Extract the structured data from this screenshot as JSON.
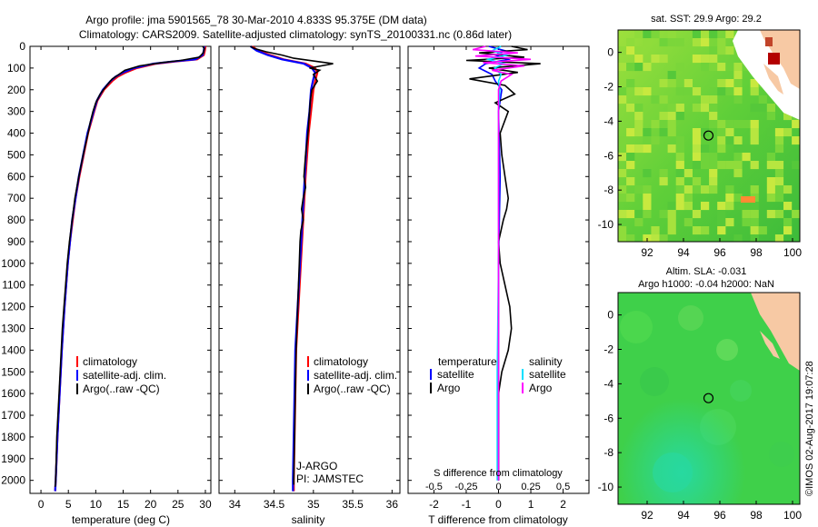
{
  "header": {
    "title_line1": "Argo profile: jma 5901565_78 30-Mar-2010 4.833S 95.375E (DM data)",
    "title_line2": "Climatology: CARS2009. Satellite-adjusted climatology: synTS_20100331.nc (0.86d later)"
  },
  "colors": {
    "climatology": "#ff0000",
    "satellite": "#0000ff",
    "argo": "#000000",
    "argo_salinity": "#ff00ff",
    "satellite_salinity": "#00e0ff",
    "land": "#f7c9a4"
  },
  "depth_ticks": [
    "0",
    "100",
    "200",
    "300",
    "400",
    "500",
    "600",
    "700",
    "800",
    "900",
    "1000",
    "1100",
    "1200",
    "1300",
    "1400",
    "1500",
    "1600",
    "1700",
    "1800",
    "1900",
    "2000"
  ],
  "chart_data": [
    {
      "type": "line",
      "id": "temperature",
      "xlabel": "temperature (deg C)",
      "xlim": [
        -2,
        31
      ],
      "ylim": [
        2060,
        0
      ],
      "xticks": [
        "0",
        "5",
        "10",
        "15",
        "20",
        "25",
        "30"
      ],
      "legend": [
        "climatology",
        "satellite-adj. clim.",
        "Argo(..raw -QC)"
      ],
      "series": [
        {
          "name": "climatology",
          "depth": [
            0,
            20,
            40,
            60,
            70,
            80,
            100,
            120,
            140,
            160,
            200,
            250,
            300,
            400,
            500,
            600,
            700,
            800,
            900,
            1000,
            1200,
            1400,
            1600,
            1800,
            2000,
            2050
          ],
          "values": [
            30.0,
            29.9,
            29.7,
            28.5,
            24.5,
            21.0,
            17.5,
            15.5,
            14.0,
            13.0,
            11.5,
            10.3,
            9.7,
            8.6,
            7.8,
            7.0,
            6.3,
            5.8,
            5.3,
            4.9,
            4.3,
            3.8,
            3.4,
            3.0,
            2.7,
            2.6
          ]
        },
        {
          "name": "satellite-adj. clim.",
          "depth": [
            0,
            20,
            40,
            60,
            70,
            80,
            100,
            120,
            140,
            160,
            200,
            250,
            300,
            400,
            500,
            600,
            700,
            800,
            900,
            1000,
            1200,
            1400,
            1600,
            1800,
            2000,
            2050
          ],
          "values": [
            29.8,
            29.7,
            29.5,
            28.2,
            24.0,
            20.5,
            17.0,
            15.0,
            13.6,
            12.7,
            11.3,
            10.2,
            9.6,
            8.5,
            7.7,
            6.9,
            6.3,
            5.7,
            5.3,
            4.9,
            4.3,
            3.8,
            3.4,
            3.0,
            2.7,
            2.6
          ]
        },
        {
          "name": "Argo(..raw -QC)",
          "depth": [
            0,
            10,
            30,
            50,
            65,
            75,
            90,
            110,
            130,
            150,
            180,
            220,
            260,
            300,
            350,
            400,
            500,
            600,
            700,
            800,
            900,
            1000,
            1100,
            1200,
            1300,
            1400,
            1600,
            1800,
            2000,
            2030
          ],
          "values": [
            29.5,
            29.8,
            29.6,
            28.9,
            25.5,
            22.0,
            18.0,
            15.3,
            14.2,
            13.0,
            12.0,
            10.8,
            10.0,
            9.5,
            9.0,
            8.6,
            7.7,
            6.9,
            6.2,
            5.7,
            5.2,
            4.8,
            4.5,
            4.2,
            3.9,
            3.7,
            3.3,
            2.9,
            2.7,
            2.6
          ]
        }
      ]
    },
    {
      "type": "line",
      "id": "salinity",
      "xlabel": "salinity",
      "xlim": [
        33.8,
        36.1
      ],
      "ylim": [
        2060,
        0
      ],
      "xticks": [
        "34",
        "34.5",
        "35",
        "35.5",
        "36"
      ],
      "legend": [
        "climatology",
        "satellite-adj. clim.",
        "Argo(..raw -QC)"
      ],
      "annotation": [
        "J-ARGO",
        "PI: JAMSTEC"
      ],
      "series": [
        {
          "name": "climatology",
          "depth": [
            0,
            20,
            40,
            60,
            80,
            100,
            120,
            150,
            200,
            300,
            400,
            600,
            800,
            1000,
            1400,
            2000,
            2050
          ],
          "values": [
            34.22,
            34.3,
            34.45,
            34.62,
            34.9,
            35.02,
            35.05,
            35.03,
            35.0,
            34.97,
            34.94,
            34.9,
            34.87,
            34.84,
            34.78,
            34.75,
            34.75
          ]
        },
        {
          "name": "satellite-adj. clim.",
          "depth": [
            0,
            20,
            40,
            60,
            80,
            100,
            120,
            150,
            200,
            300,
            400,
            600,
            800,
            1000,
            1400,
            2000,
            2050
          ],
          "values": [
            34.2,
            34.28,
            34.42,
            34.6,
            34.88,
            34.98,
            35.02,
            35.0,
            34.97,
            34.95,
            34.92,
            34.89,
            34.86,
            34.83,
            34.77,
            34.74,
            34.74
          ]
        },
        {
          "name": "Argo(..raw -QC)",
          "depth": [
            0,
            10,
            25,
            40,
            55,
            70,
            80,
            90,
            100,
            110,
            130,
            160,
            200,
            250,
            300,
            400,
            500,
            600,
            650,
            700,
            750,
            800,
            850,
            900,
            1000,
            1200,
            1300,
            1400,
            1600,
            1800,
            2000,
            2020
          ],
          "values": [
            34.2,
            34.25,
            34.4,
            34.6,
            34.75,
            35.05,
            35.25,
            35.1,
            34.95,
            35.08,
            35.0,
            35.05,
            34.98,
            34.96,
            34.95,
            34.93,
            34.9,
            34.88,
            34.9,
            34.87,
            34.85,
            34.87,
            34.84,
            34.83,
            34.82,
            34.8,
            34.79,
            34.78,
            34.77,
            34.76,
            34.75,
            34.75
          ]
        }
      ]
    },
    {
      "type": "line",
      "id": "difference",
      "xlabel": "T difference from climatology",
      "xlabel2": "S difference from climatology",
      "xlim": [
        -2.8,
        2.8
      ],
      "ylim": [
        2060,
        0
      ],
      "xticks": [
        "-2",
        "-1",
        "0",
        "1",
        "2"
      ],
      "x2ticks": [
        "-0.5",
        "-0.25",
        "0",
        "0.25",
        "0.5"
      ],
      "legend": {
        "temperature_title": "temperature",
        "salinity_title": "salinity",
        "items": [
          "satellite",
          "Argo",
          "satellite",
          "Argo"
        ]
      },
      "series": [
        {
          "name": "T satellite",
          "depth": [
            0,
            20,
            40,
            60,
            80,
            100,
            130,
            160,
            200,
            300,
            600,
            1000,
            1500,
            2000
          ],
          "values": [
            -0.3,
            0.2,
            -0.1,
            0.3,
            -0.4,
            -0.6,
            -0.2,
            -0.1,
            0.1,
            0.0,
            0.05,
            0.0,
            0.0,
            0.0
          ]
        },
        {
          "name": "T Argo",
          "depth": [
            0,
            15,
            30,
            50,
            65,
            80,
            100,
            120,
            150,
            180,
            220,
            260,
            300,
            400,
            500,
            600,
            700,
            750,
            800,
            900,
            1000,
            1100,
            1200,
            1300,
            1400,
            1500,
            1600,
            2000
          ],
          "values": [
            0.4,
            0.9,
            -0.6,
            0.8,
            -1.0,
            1.3,
            -0.3,
            0.6,
            -0.9,
            0.2,
            0.5,
            -0.1,
            0.3,
            0.05,
            0.1,
            0.2,
            0.3,
            0.25,
            0.15,
            0.0,
            0.05,
            0.2,
            0.35,
            0.4,
            0.3,
            0.1,
            0.0,
            0.0
          ]
        },
        {
          "name": "S satellite",
          "depth": [
            0,
            20,
            40,
            60,
            80,
            100,
            130,
            160,
            200,
            300,
            600,
            1000,
            1500,
            2000
          ],
          "values": [
            0.02,
            -0.05,
            0.06,
            -0.08,
            0.04,
            -0.03,
            0.02,
            0.0,
            0.01,
            0.0,
            0.0,
            0.0,
            -0.01,
            -0.01
          ]
        },
        {
          "name": "S Argo",
          "depth": [
            0,
            15,
            30,
            45,
            60,
            75,
            90,
            110,
            130,
            160,
            200,
            300,
            500,
            800,
            1000,
            1400,
            2000
          ],
          "values": [
            -0.1,
            -0.2,
            0.15,
            -0.18,
            0.25,
            -0.12,
            0.2,
            -0.05,
            0.1,
            0.02,
            0.0,
            0.0,
            0.0,
            0.0,
            0.0,
            0.0,
            0.0
          ]
        }
      ]
    },
    {
      "type": "heatmap",
      "id": "sst-map",
      "title": "sat. SST: 29.9  Argo: 29.2",
      "xticks": [
        "92",
        "94",
        "96",
        "98",
        "100"
      ],
      "yticks": [
        "0",
        "-2",
        "-4",
        "-6",
        "-8",
        "-10"
      ],
      "xlim": [
        90.4,
        100.4
      ],
      "ylim": [
        -11.0,
        1.3
      ],
      "marker": {
        "lon": 95.375,
        "lat": -4.833
      }
    },
    {
      "type": "heatmap",
      "id": "sla-map",
      "title_line1": "Altim. SLA: -0.031",
      "title_line2": "Argo h1000: -0.04 h2000: NaN",
      "xticks": [
        "92",
        "94",
        "96",
        "98",
        "100"
      ],
      "yticks": [
        "0",
        "-2",
        "-4",
        "-6",
        "-8",
        "-10"
      ],
      "xlim": [
        90.4,
        100.4
      ],
      "ylim": [
        -11.0,
        1.3
      ],
      "marker": {
        "lon": 95.375,
        "lat": -4.833
      }
    }
  ],
  "footer": {
    "stamp": "©IMOS 02-Aug-2017 19:07:28"
  }
}
